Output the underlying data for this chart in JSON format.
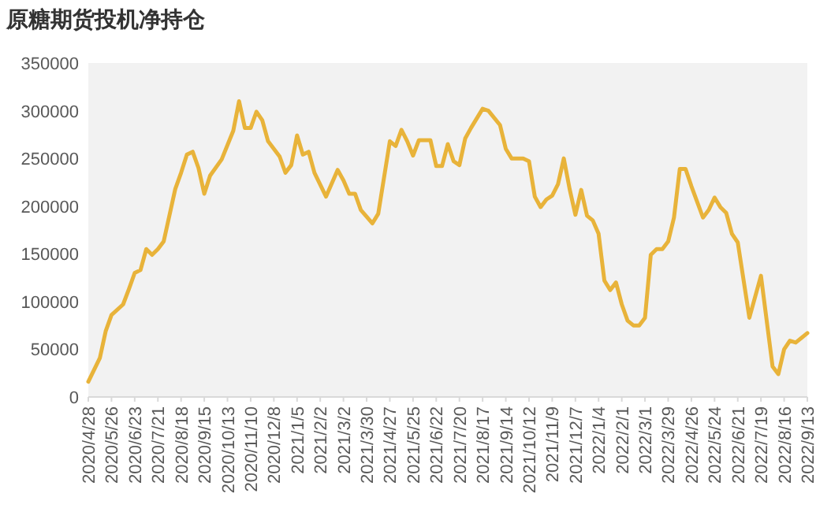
{
  "chart_data": {
    "type": "line",
    "title": "原糖期货投机净持仓",
    "x": [
      "2020-04-28",
      "2020-05-12",
      "2020-05-19",
      "2020-05-26",
      "2020-06-09",
      "2020-06-16",
      "2020-06-23",
      "2020-06-30",
      "2020-07-07",
      "2020-07-14",
      "2020-07-21",
      "2020-07-28",
      "2020-08-11",
      "2020-08-18",
      "2020-08-25",
      "2020-09-01",
      "2020-09-08",
      "2020-09-15",
      "2020-09-22",
      "2020-10-06",
      "2020-10-20",
      "2020-10-27",
      "2020-11-03",
      "2020-11-10",
      "2020-11-17",
      "2020-11-24",
      "2020-12-01",
      "2020-12-15",
      "2020-12-22",
      "2020-12-29",
      "2021-01-05",
      "2021-01-12",
      "2021-01-19",
      "2021-01-26",
      "2021-02-09",
      "2021-02-23",
      "2021-03-02",
      "2021-03-09",
      "2021-03-16",
      "2021-03-23",
      "2021-04-06",
      "2021-04-13",
      "2021-04-27",
      "2021-05-04",
      "2021-05-11",
      "2021-05-18",
      "2021-05-25",
      "2021-06-01",
      "2021-06-15",
      "2021-06-22",
      "2021-06-29",
      "2021-07-06",
      "2021-07-13",
      "2021-07-20",
      "2021-07-27",
      "2021-08-03",
      "2021-08-17",
      "2021-08-24",
      "2021-09-07",
      "2021-09-14",
      "2021-09-21",
      "2021-10-05",
      "2021-10-12",
      "2021-10-19",
      "2021-10-26",
      "2021-11-02",
      "2021-11-09",
      "2021-11-16",
      "2021-11-23",
      "2021-11-30",
      "2021-12-07",
      "2021-12-14",
      "2021-12-21",
      "2021-12-28",
      "2022-01-04",
      "2022-01-11",
      "2022-01-18",
      "2022-01-25",
      "2022-02-01",
      "2022-02-08",
      "2022-02-15",
      "2022-02-22",
      "2022-03-01",
      "2022-03-08",
      "2022-03-15",
      "2022-03-22",
      "2022-03-29",
      "2022-04-05",
      "2022-04-12",
      "2022-04-19",
      "2022-04-26",
      "2022-05-10",
      "2022-05-17",
      "2022-05-24",
      "2022-05-31",
      "2022-06-07",
      "2022-06-14",
      "2022-06-21",
      "2022-07-05",
      "2022-07-19",
      "2022-08-02",
      "2022-08-09",
      "2022-08-16",
      "2022-08-23",
      "2022-08-30",
      "2022-09-13"
    ],
    "series": [
      {
        "color": "#e8b33a",
        "values": [
          16000,
          41000,
          69000,
          86000,
          97000,
          113000,
          130000,
          133000,
          155000,
          149000,
          155000,
          163000,
          218000,
          235000,
          254000,
          257000,
          240000,
          213000,
          232000,
          249000,
          279000,
          310000,
          282000,
          282000,
          299000,
          290000,
          268000,
          252000,
          235000,
          243000,
          274000,
          254000,
          257000,
          235000,
          210000,
          238000,
          227000,
          213000,
          213000,
          196000,
          182000,
          192000,
          268000,
          263000,
          280000,
          268000,
          253000,
          269000,
          269000,
          242000,
          242000,
          265000,
          247000,
          243000,
          271000,
          282000,
          302000,
          300000,
          285000,
          260000,
          250000,
          250000,
          247000,
          210000,
          199000,
          207000,
          211000,
          223000,
          250000,
          218000,
          191000,
          217000,
          190000,
          185000,
          171000,
          122000,
          112000,
          120000,
          97000,
          80000,
          75000,
          75000,
          83000,
          149000,
          155000,
          155000,
          163000,
          188000,
          239000,
          239000,
          221000,
          188000,
          196000,
          209000,
          199000,
          193000,
          171000,
          162000,
          83000,
          127000,
          32000,
          24000,
          50000,
          59000,
          57000,
          67000
        ]
      }
    ],
    "xlim": [
      "2020-04-28",
      "2022-09-13"
    ],
    "xticks": [
      {
        "value": "2020-04-28",
        "label": "2020/4/28"
      },
      {
        "value": "2020-05-26",
        "label": "2020/5/26"
      },
      {
        "value": "2020-06-23",
        "label": "2020/6/23"
      },
      {
        "value": "2020-07-21",
        "label": "2020/7/21"
      },
      {
        "value": "2020-08-18",
        "label": "2020/8/18"
      },
      {
        "value": "2020-09-15",
        "label": "2020/9/15"
      },
      {
        "value": "2020-10-13",
        "label": "2020/10/13"
      },
      {
        "value": "2020-11-10",
        "label": "2020/11/10"
      },
      {
        "value": "2020-12-08",
        "label": "2020/12/8"
      },
      {
        "value": "2021-01-05",
        "label": "2021/1/5"
      },
      {
        "value": "2021-02-02",
        "label": "2021/2/2"
      },
      {
        "value": "2021-03-02",
        "label": "2021/3/2"
      },
      {
        "value": "2021-03-30",
        "label": "2021/3/30"
      },
      {
        "value": "2021-04-27",
        "label": "2021/4/27"
      },
      {
        "value": "2021-05-25",
        "label": "2021/5/25"
      },
      {
        "value": "2021-06-22",
        "label": "2021/6/22"
      },
      {
        "value": "2021-07-20",
        "label": "2021/7/20"
      },
      {
        "value": "2021-08-17",
        "label": "2021/8/17"
      },
      {
        "value": "2021-09-14",
        "label": "2021/9/14"
      },
      {
        "value": "2021-10-12",
        "label": "2021/10/12"
      },
      {
        "value": "2021-11-09",
        "label": "2021/11/9"
      },
      {
        "value": "2021-12-07",
        "label": "2021/12/7"
      },
      {
        "value": "2022-01-04",
        "label": "2022/1/4"
      },
      {
        "value": "2022-02-01",
        "label": "2022/2/1"
      },
      {
        "value": "2022-03-01",
        "label": "2022/3/1"
      },
      {
        "value": "2022-03-29",
        "label": "2022/3/29"
      },
      {
        "value": "2022-04-26",
        "label": "2022/4/26"
      },
      {
        "value": "2022-05-24",
        "label": "2022/5/24"
      },
      {
        "value": "2022-06-21",
        "label": "2022/6/21"
      },
      {
        "value": "2022-07-19",
        "label": "2022/7/19"
      },
      {
        "value": "2022-08-16",
        "label": "2022/8/16"
      },
      {
        "value": "2022-09-13",
        "label": "2022/9/13"
      }
    ],
    "ylim": [
      0,
      350000
    ],
    "yticks": [
      0,
      50000,
      100000,
      150000,
      200000,
      250000,
      300000,
      350000
    ],
    "grid": false,
    "marker": "none",
    "line_style": "solid"
  }
}
